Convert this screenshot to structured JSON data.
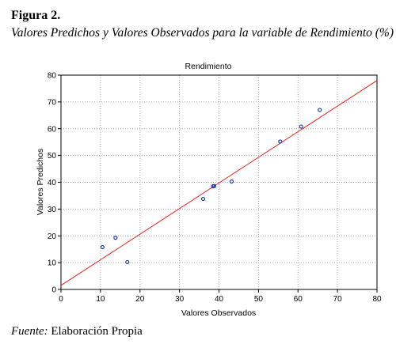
{
  "figure": {
    "label": "Figura 2.",
    "caption": "Valores Predichos y Valores Observados para la variable de Rendimiento (%)"
  },
  "source": {
    "label": "Fuente:",
    "text": "Elaboración Propia"
  },
  "chart_data": {
    "type": "scatter",
    "title": "Rendimiento",
    "x_label": "Valores Observados",
    "y_label": "Valores Predichos",
    "series": [
      {
        "color": "#1f3fa0",
        "x": [
          10.5,
          13.8,
          16.8,
          36,
          38.5,
          38.8,
          43.2,
          55.5,
          60.8,
          65.5
        ],
        "values": [
          15.8,
          19.3,
          10.2,
          33.8,
          38.5,
          38.6,
          40.3,
          55.2,
          60.8,
          67
        ]
      }
    ],
    "fit_line": {
      "color": "#e02020",
      "x": [
        0,
        80
      ],
      "values": [
        1.5,
        78
      ]
    },
    "xlim": [
      0,
      80
    ],
    "ylim": [
      0,
      80
    ],
    "xticks": [
      0,
      10,
      20,
      30,
      40,
      50,
      60,
      70,
      80
    ],
    "yticks": [
      0,
      10,
      20,
      30,
      40,
      50,
      60,
      70,
      80
    ],
    "grid": true
  }
}
